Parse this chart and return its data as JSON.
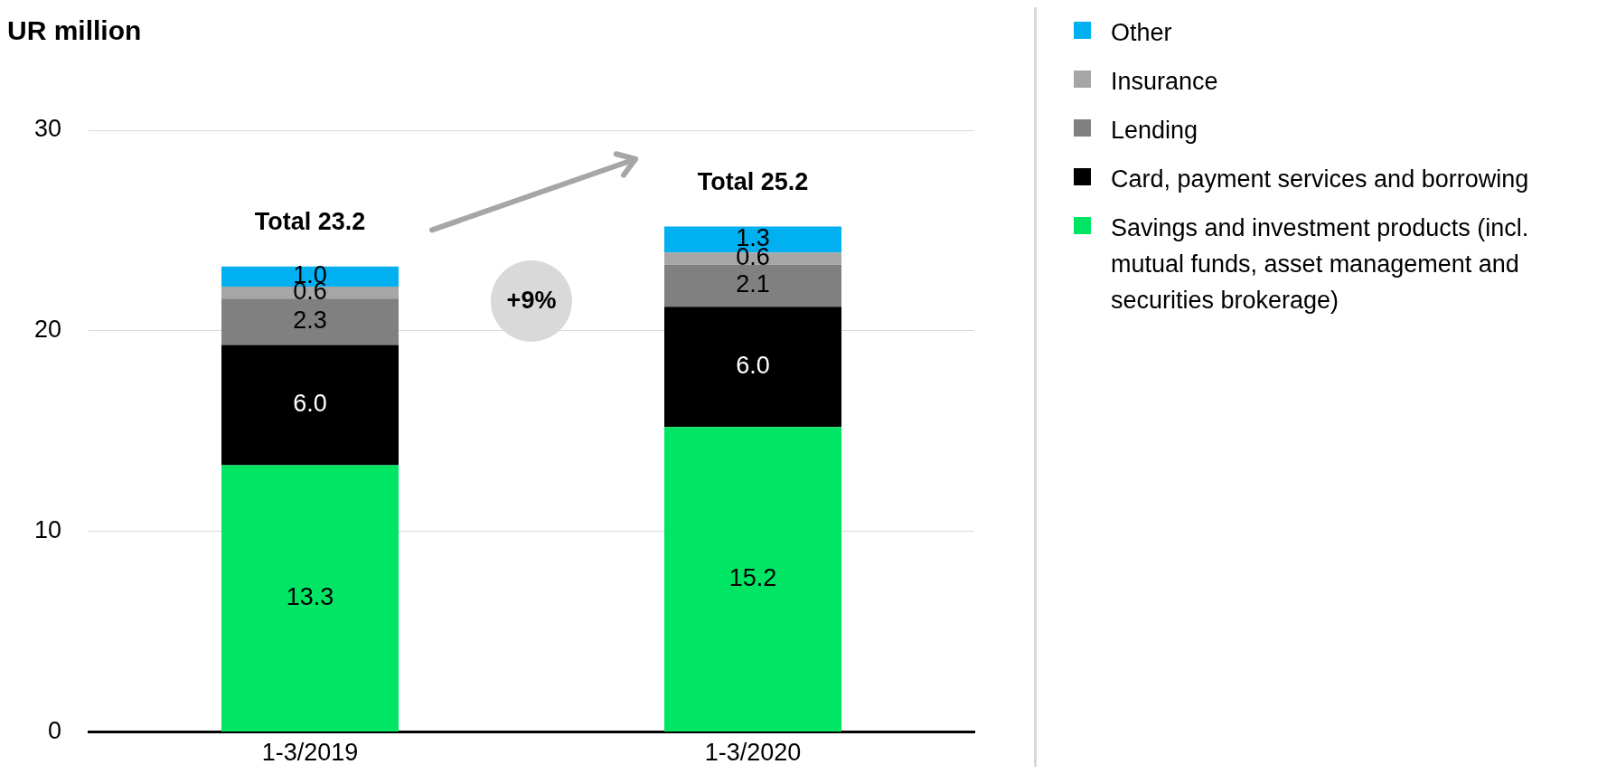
{
  "chart_data": {
    "type": "bar",
    "title": "UR million",
    "categories": [
      "1-3/2019",
      "1-3/2020"
    ],
    "stacked": true,
    "series": [
      {
        "name": "Savings and investment products (incl. mutual funds, asset management and securities brokerage)",
        "color": "#00e564",
        "values": [
          13.3,
          15.2
        ],
        "value_labels": [
          "13.3",
          "15.2"
        ]
      },
      {
        "name": "Card, payment services and borrowing",
        "color": "#000000",
        "values": [
          6.0,
          6.0
        ],
        "value_labels": [
          "6.0",
          "6.0"
        ]
      },
      {
        "name": "Lending",
        "color": "#808080",
        "values": [
          2.3,
          2.1
        ],
        "value_labels": [
          "2.3",
          "2.1"
        ]
      },
      {
        "name": "Insurance",
        "color": "#a6a6a6",
        "values": [
          0.6,
          0.6
        ],
        "value_labels": [
          "0.6",
          "0.6"
        ]
      },
      {
        "name": "Other",
        "color": "#00b0f0",
        "values": [
          1.0,
          1.3
        ],
        "value_labels": [
          "1.0",
          "1.3"
        ]
      }
    ],
    "ylim": [
      0,
      30
    ],
    "yticks": [
      0,
      10,
      20,
      30
    ],
    "grid": "y",
    "legend": "right",
    "totals": [
      "Total 23.2",
      "Total 25.2"
    ],
    "annotations": [
      "+9%"
    ]
  }
}
